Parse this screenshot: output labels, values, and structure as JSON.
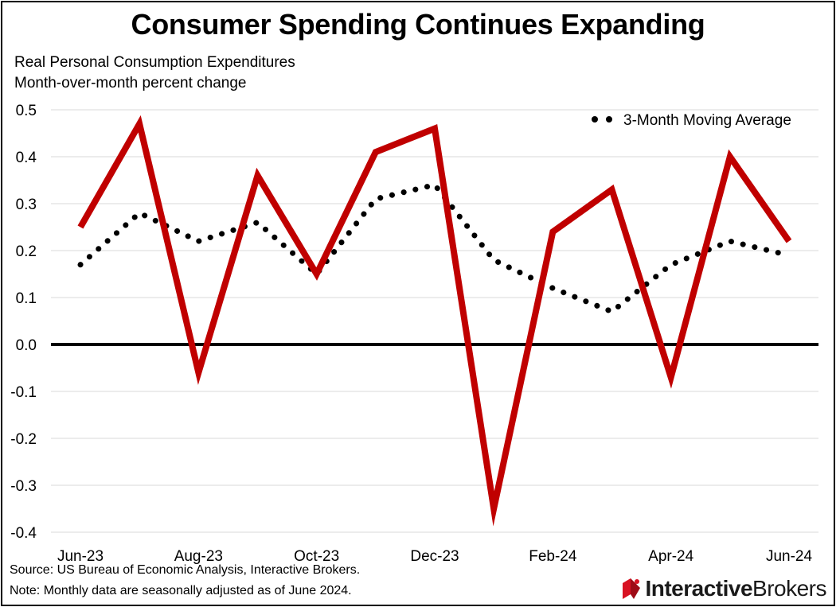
{
  "title": "Consumer Spending Continues Expanding",
  "subtitle_line1": "Real Personal Consumption Expenditures",
  "subtitle_line2": "Month-over-month percent change",
  "footnote_source": "Source: US Bureau of Economic Analysis, Interactive Brokers.",
  "footnote_note": "Note: Monthly data are seasonally adjusted as of June 2024.",
  "logo": {
    "part1": "Interactive",
    "part2": "Brokers"
  },
  "colors": {
    "series_line": "#c00000",
    "moving_average": "#000000",
    "gridline": "#d9d9d9",
    "zero_line": "#000000"
  },
  "chart_data": {
    "type": "line",
    "categories": [
      "Jun-23",
      "Jul-23",
      "Aug-23",
      "Sep-23",
      "Oct-23",
      "Nov-23",
      "Dec-23",
      "Jan-24",
      "Feb-24",
      "Mar-24",
      "Apr-24",
      "May-24",
      "Jun-24"
    ],
    "x_tick_labels": [
      "Jun-23",
      "Aug-23",
      "Oct-23",
      "Dec-23",
      "Feb-24",
      "Apr-24",
      "Jun-24"
    ],
    "y_ticks": [
      "0.5",
      "0.4",
      "0.3",
      "0.2",
      "0.1",
      "0.0",
      "-0.1",
      "-0.2",
      "-0.3",
      "-0.4"
    ],
    "ylim": [
      -0.4,
      0.5
    ],
    "grid": true,
    "legend_position": "top-right",
    "series": [
      {
        "style": "solid",
        "values": [
          0.25,
          0.47,
          -0.06,
          0.36,
          0.15,
          0.41,
          0.46,
          -0.35,
          0.24,
          0.33,
          -0.07,
          0.4,
          0.22
        ]
      },
      {
        "name": "3-Month Moving Average",
        "style": "dotted",
        "values": [
          0.17,
          0.28,
          0.22,
          0.26,
          0.15,
          0.31,
          0.34,
          0.18,
          0.12,
          0.07,
          0.17,
          0.22,
          0.19
        ]
      }
    ]
  }
}
